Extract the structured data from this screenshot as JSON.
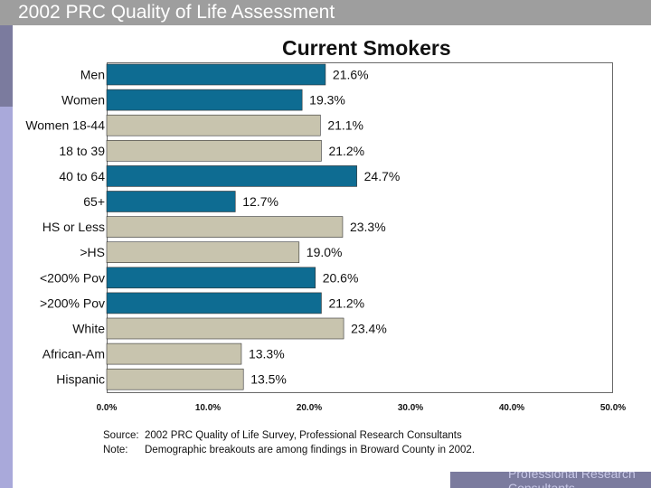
{
  "header": {
    "title": "2002 PRC Quality of Life Assessment"
  },
  "footer": {
    "brand": "Professional Research Consultants"
  },
  "notes": {
    "source_label": "Source:",
    "source_text": "2002 PRC Quality of Life Survey, Professional Research Consultants",
    "note_label": "Note:",
    "note_text": "Demographic breakouts are among findings in Broward County in 2002."
  },
  "colors": {
    "teal": "#0e6c92",
    "tan": "#c8c4ae",
    "frame": "#6a6a6a"
  },
  "chart_data": {
    "type": "bar",
    "orientation": "horizontal",
    "title": "Current Smokers",
    "xlim": [
      0,
      50
    ],
    "x_ticks": [
      0,
      10,
      20,
      30,
      40,
      50
    ],
    "x_tick_labels": [
      "0.0%",
      "10.0%",
      "20.0%",
      "30.0%",
      "40.0%",
      "50.0%"
    ],
    "categories": [
      "Men",
      "Women",
      "Women 18-44",
      "18 to 39",
      "40 to 64",
      "65+",
      "HS or Less",
      ">HS",
      "<200% Pov",
      ">200% Pov",
      "White",
      "African-Am",
      "Hispanic"
    ],
    "values": [
      21.6,
      19.3,
      21.1,
      21.2,
      24.7,
      12.7,
      23.3,
      19.0,
      20.6,
      21.2,
      23.4,
      13.3,
      13.5
    ],
    "value_labels": [
      "21.6%",
      "19.3%",
      "21.1%",
      "21.2%",
      "24.7%",
      "12.7%",
      "23.3%",
      "19.0%",
      "20.6%",
      "21.2%",
      "23.4%",
      "13.3%",
      "13.5%"
    ],
    "bar_colors": [
      "teal",
      "teal",
      "tan",
      "tan",
      "teal",
      "teal",
      "tan",
      "tan",
      "teal",
      "teal",
      "tan",
      "tan",
      "tan"
    ]
  }
}
